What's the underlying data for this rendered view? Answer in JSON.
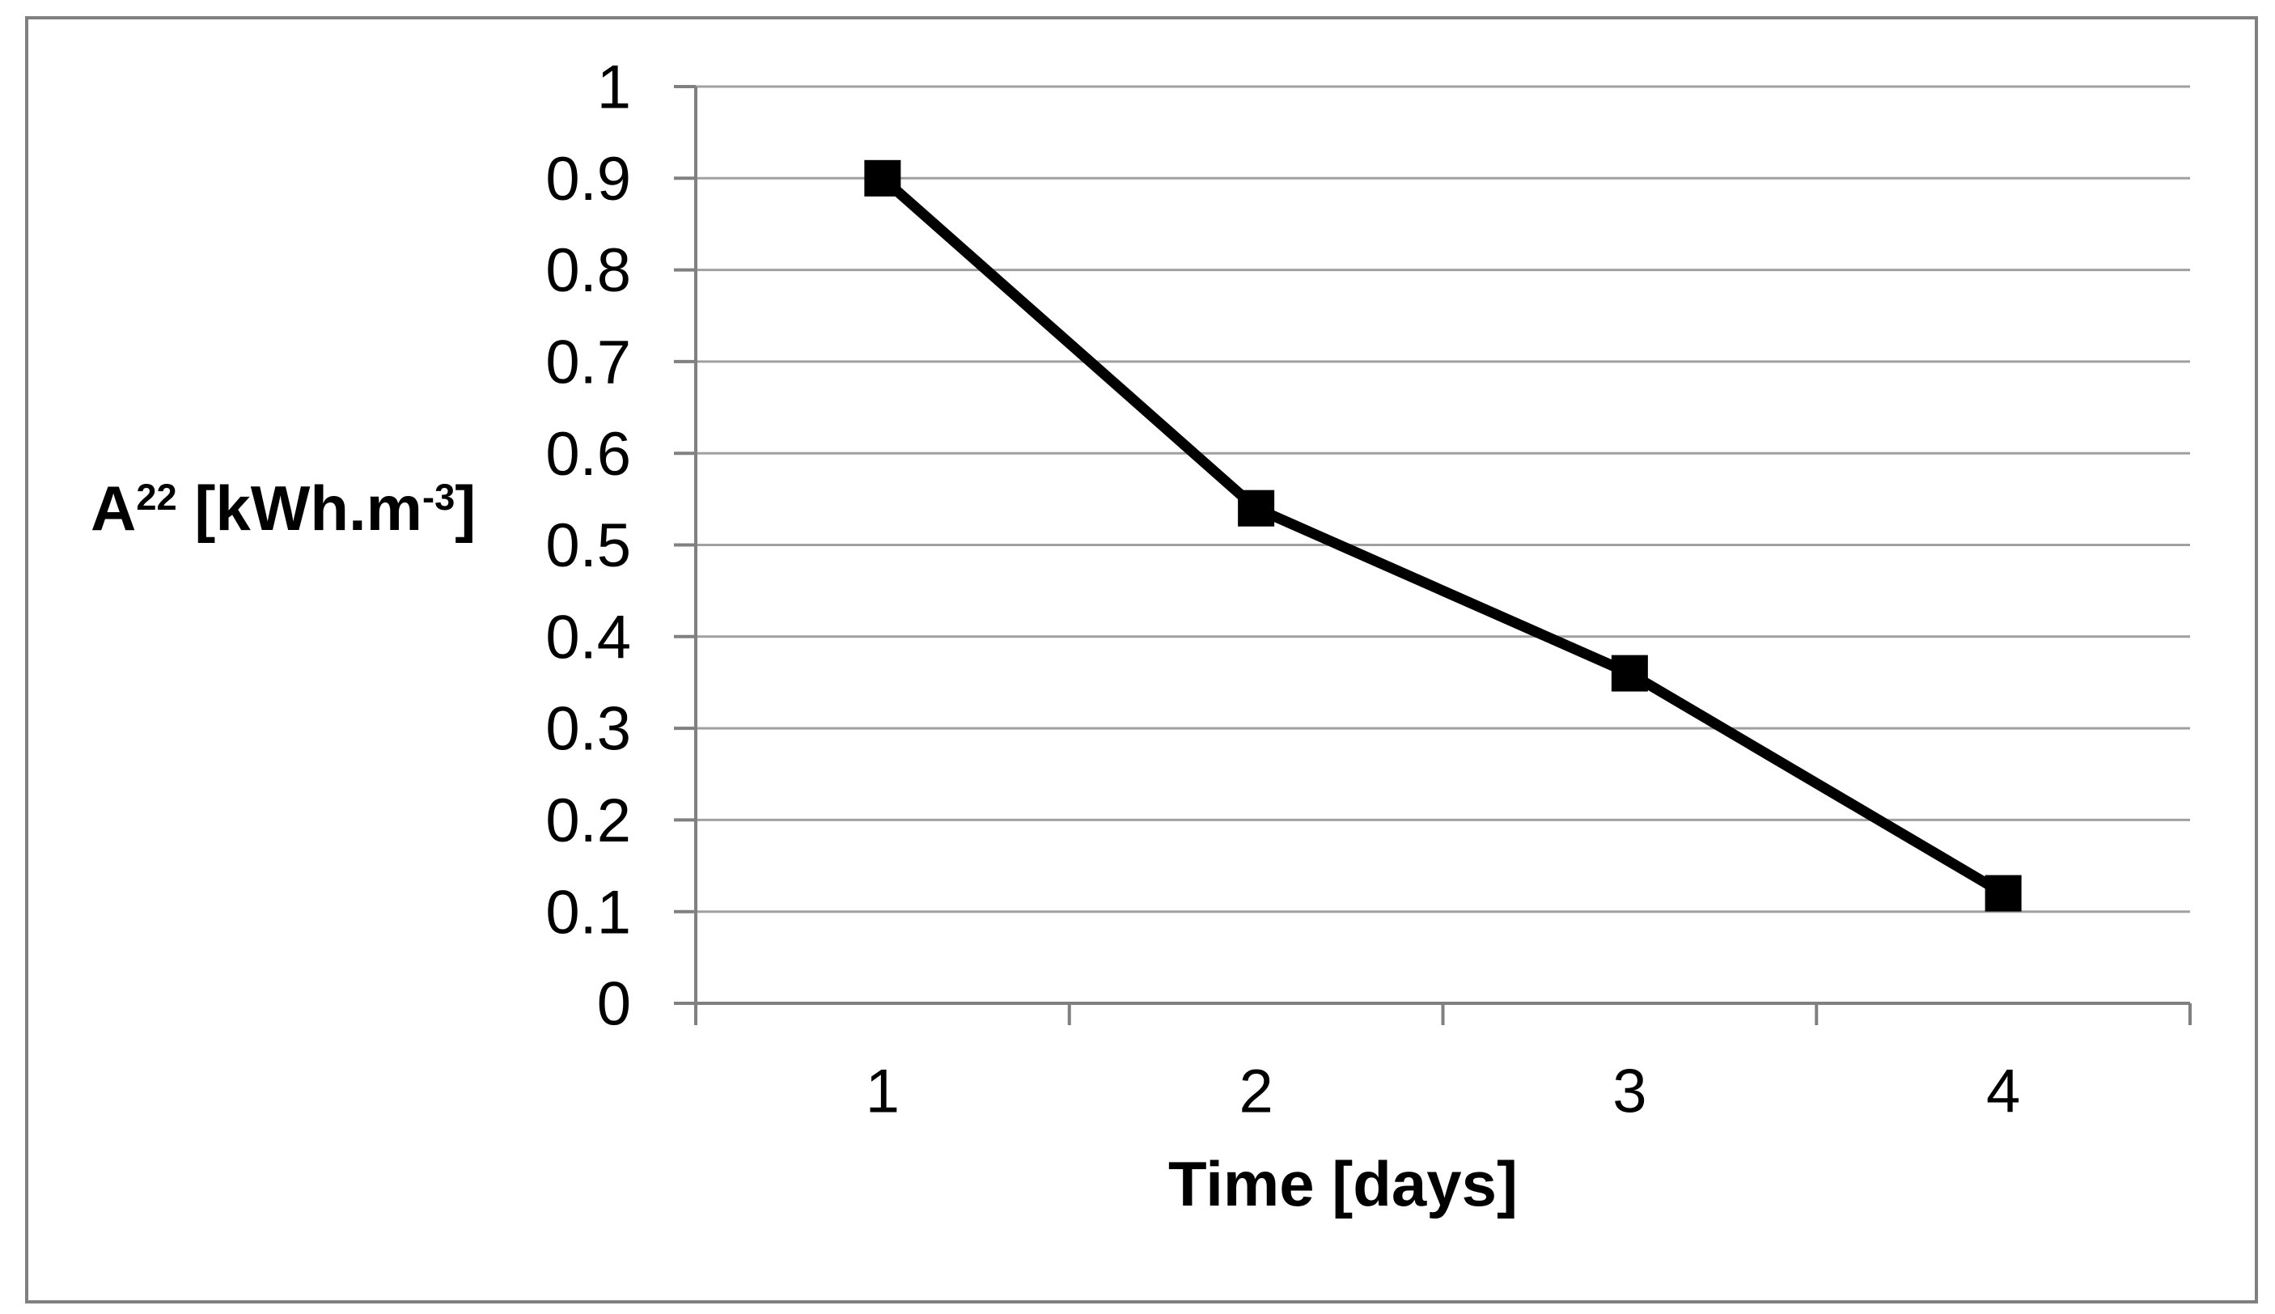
{
  "chart_data": {
    "type": "line",
    "title": "",
    "categories": [
      "1",
      "2",
      "3",
      "4"
    ],
    "series": [
      {
        "name": "A22 [kWh.m-3]",
        "x": [
          1,
          2,
          3,
          4
        ],
        "values": [
          0.9,
          0.54,
          0.36,
          0.12
        ]
      }
    ],
    "xlabel": "Time [days]",
    "ylabel": "A22 [kWh.m-3]",
    "ylabel_parts": {
      "base": "A",
      "sup1": "22",
      "mid": " [kWh.m",
      "sup2": "-3",
      "end": "]"
    },
    "ylim": [
      0,
      1
    ],
    "ytick_labels": [
      "1",
      "0.9",
      "0.8",
      "0.7",
      "0.6",
      "0.5",
      "0.4",
      "0.3",
      "0.2",
      "0.1",
      "0"
    ],
    "grid": "horizontal",
    "legend": "none",
    "marker": "square",
    "colors": {
      "line": "#000000",
      "marker": "#000000",
      "grid": "#A0A0A0",
      "axis": "#808080",
      "border": "#808080",
      "text": "#000000"
    }
  }
}
